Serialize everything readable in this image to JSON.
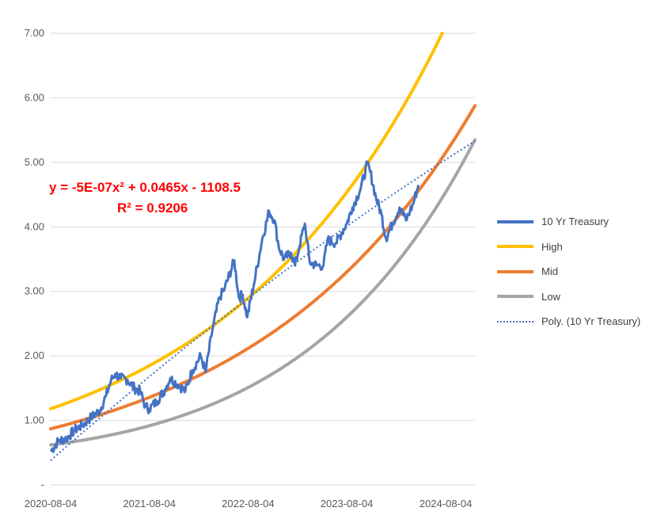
{
  "chart_data": {
    "type": "line",
    "title": "",
    "xlabel": "",
    "ylabel": "",
    "ylim": [
      0,
      7
    ],
    "xlim": [
      "2020-08-04",
      "2024-11-20"
    ],
    "y_ticks": [
      {
        "value": 0,
        "label": "-"
      },
      {
        "value": 1,
        "label": "1.00"
      },
      {
        "value": 2,
        "label": "2.00"
      },
      {
        "value": 3,
        "label": "3.00"
      },
      {
        "value": 4,
        "label": "4.00"
      },
      {
        "value": 5,
        "label": "5.00"
      },
      {
        "value": 6,
        "label": "6.00"
      },
      {
        "value": 7,
        "label": "7.00"
      }
    ],
    "x_ticks": [
      "2020-08-04",
      "2021-08-04",
      "2022-08-04",
      "2023-08-04",
      "2024-08-04"
    ],
    "grid": true,
    "legend_position": "right",
    "series": [
      {
        "name": "10 Yr Treasury",
        "color": "#4472C4",
        "style": "solid",
        "points": [
          [
            "2020-08-04",
            0.52
          ],
          [
            "2020-09-01",
            0.68
          ],
          [
            "2020-10-01",
            0.72
          ],
          [
            "2020-11-01",
            0.85
          ],
          [
            "2020-12-01",
            0.93
          ],
          [
            "2021-01-01",
            1.05
          ],
          [
            "2021-02-01",
            1.15
          ],
          [
            "2021-02-25",
            1.38
          ],
          [
            "2021-03-15",
            1.62
          ],
          [
            "2021-03-31",
            1.72
          ],
          [
            "2021-04-20",
            1.65
          ],
          [
            "2021-05-15",
            1.63
          ],
          [
            "2021-06-10",
            1.5
          ],
          [
            "2021-07-01",
            1.45
          ],
          [
            "2021-07-20",
            1.22
          ],
          [
            "2021-08-04",
            1.18
          ],
          [
            "2021-09-01",
            1.3
          ],
          [
            "2021-10-01",
            1.48
          ],
          [
            "2021-10-20",
            1.65
          ],
          [
            "2021-11-20",
            1.55
          ],
          [
            "2021-12-15",
            1.45
          ],
          [
            "2022-01-10",
            1.78
          ],
          [
            "2022-02-10",
            2.0
          ],
          [
            "2022-02-28",
            1.75
          ],
          [
            "2022-03-25",
            2.4
          ],
          [
            "2022-04-20",
            2.9
          ],
          [
            "2022-05-10",
            3.05
          ],
          [
            "2022-06-14",
            3.48
          ],
          [
            "2022-07-01",
            2.9
          ],
          [
            "2022-07-15",
            2.95
          ],
          [
            "2022-08-01",
            2.6
          ],
          [
            "2022-08-25",
            3.1
          ],
          [
            "2022-09-25",
            3.8
          ],
          [
            "2022-10-21",
            4.24
          ],
          [
            "2022-11-10",
            4.1
          ],
          [
            "2022-11-25",
            3.7
          ],
          [
            "2022-12-15",
            3.5
          ],
          [
            "2023-01-10",
            3.6
          ],
          [
            "2023-01-25",
            3.4
          ],
          [
            "2023-02-10",
            3.7
          ],
          [
            "2023-03-02",
            4.05
          ],
          [
            "2023-03-20",
            3.45
          ],
          [
            "2023-04-15",
            3.4
          ],
          [
            "2023-05-10",
            3.4
          ],
          [
            "2023-05-25",
            3.8
          ],
          [
            "2023-06-25",
            3.75
          ],
          [
            "2023-07-15",
            3.9
          ],
          [
            "2023-08-04",
            4.05
          ],
          [
            "2023-08-25",
            4.3
          ],
          [
            "2023-09-25",
            4.6
          ],
          [
            "2023-10-19",
            4.98
          ],
          [
            "2023-10-30",
            4.85
          ],
          [
            "2023-11-20",
            4.45
          ],
          [
            "2023-12-10",
            4.2
          ],
          [
            "2023-12-27",
            3.82
          ],
          [
            "2024-01-20",
            4.05
          ],
          [
            "2024-02-15",
            4.3
          ],
          [
            "2024-03-10",
            4.1
          ],
          [
            "2024-03-25",
            4.25
          ],
          [
            "2024-04-05",
            4.35
          ],
          [
            "2024-04-25",
            4.65
          ]
        ]
      },
      {
        "name": "High",
        "color": "#FFC000",
        "style": "solid",
        "start_value": 1.18,
        "annual_growth": 0.567
      },
      {
        "name": "Mid",
        "color": "#ED7D31",
        "style": "solid",
        "start_value": 0.87,
        "annual_growth": 0.56
      },
      {
        "name": "Low",
        "color": "#A5A5A5",
        "style": "solid",
        "start_value": 0.62,
        "annual_growth": 0.69,
        "decay_per_year": 0.13
      },
      {
        "name": "Poly. (10 Yr Treasury)",
        "color": "#4472C4",
        "style": "dotted",
        "trend_of": "10 Yr Treasury",
        "start_value": 0.38,
        "end_value": 5.33
      }
    ],
    "annotations": [
      {
        "text": "y = -5E-07x² + 0.0465x - 1108.5",
        "color": "#FF0000"
      },
      {
        "text": "R² = 0.9206",
        "color": "#FF0000"
      }
    ]
  }
}
